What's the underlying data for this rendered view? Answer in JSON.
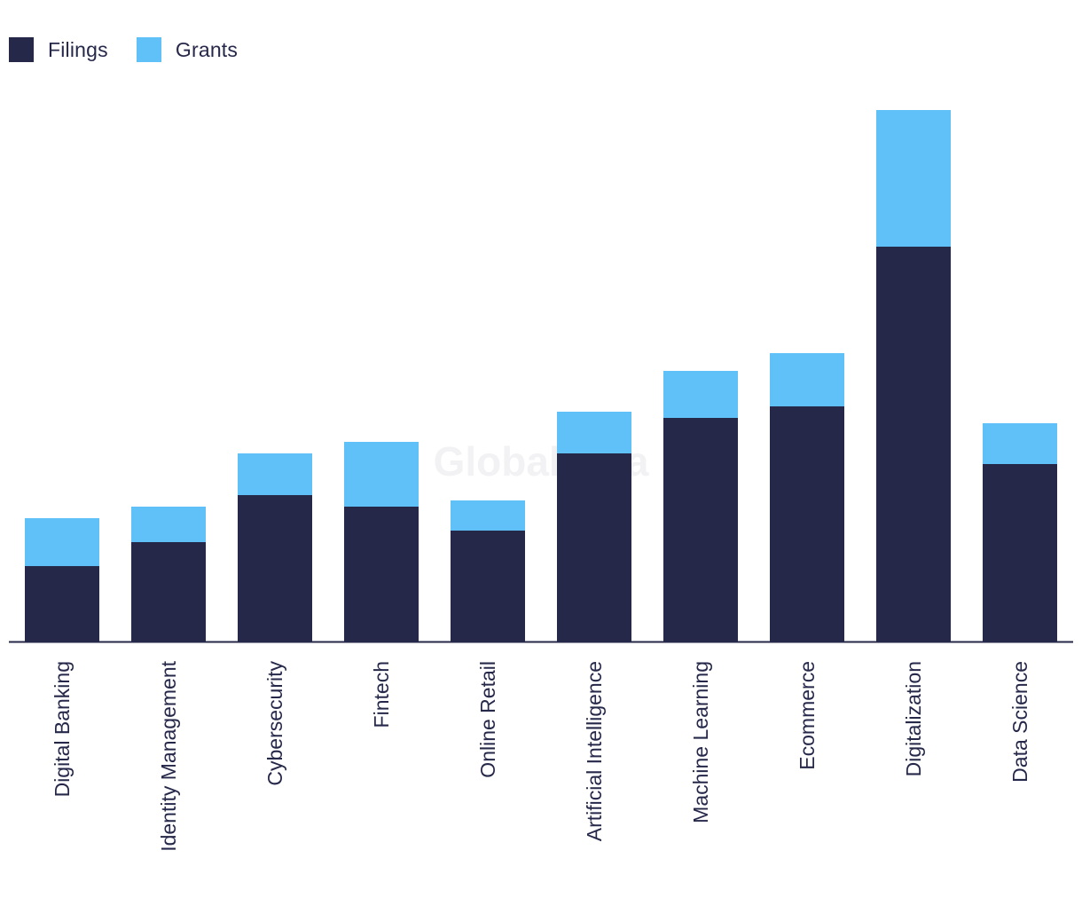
{
  "colors": {
    "filings": "#26284a",
    "grants": "#60c0f8",
    "axis": "#26284a",
    "watermark": "#f2f2f4"
  },
  "legend": {
    "filings_label": "Filings",
    "grants_label": "Grants"
  },
  "watermark": "GlobalData",
  "chart_data": {
    "type": "bar",
    "stacked": true,
    "categories": [
      "Digital Banking",
      "Identity Management",
      "Cybersecurity",
      "Fintech",
      "Online Retail",
      "Artificial Intelligence",
      "Machine Learning",
      "Ecommerce",
      "Digitalization",
      "Data Science"
    ],
    "series": [
      {
        "name": "Filings",
        "values": [
          85,
          112,
          165,
          152,
          125,
          212,
          252,
          265,
          445,
          200
        ]
      },
      {
        "name": "Grants",
        "values": [
          54,
          40,
          47,
          73,
          34,
          47,
          53,
          60,
          154,
          46
        ]
      }
    ],
    "ylim": [
      0,
      600
    ],
    "grid": false,
    "legend_position": "top-left",
    "xlabel": "",
    "ylabel": ""
  }
}
